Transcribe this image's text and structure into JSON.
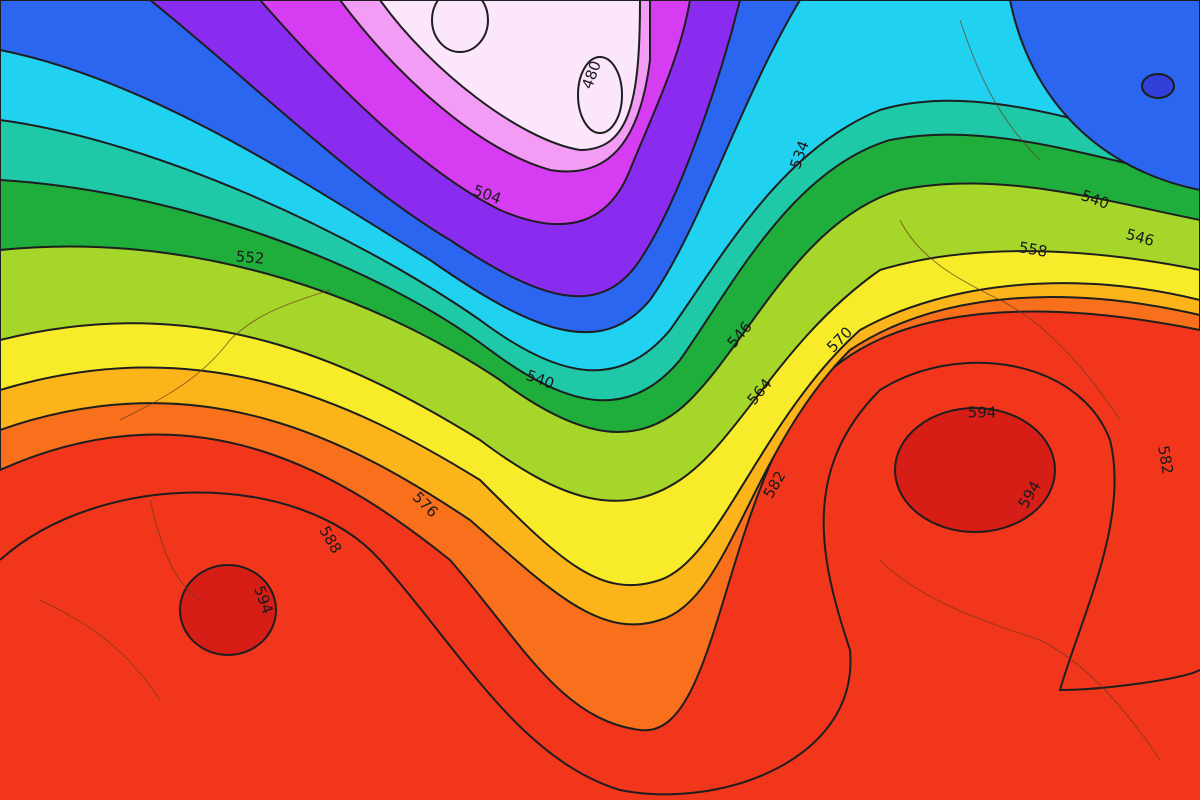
{
  "contour_labels": [
    480,
    504,
    534,
    540,
    546,
    552,
    558,
    540,
    546,
    570,
    564,
    576,
    582,
    588,
    594,
    594,
    594,
    582
  ]
}
